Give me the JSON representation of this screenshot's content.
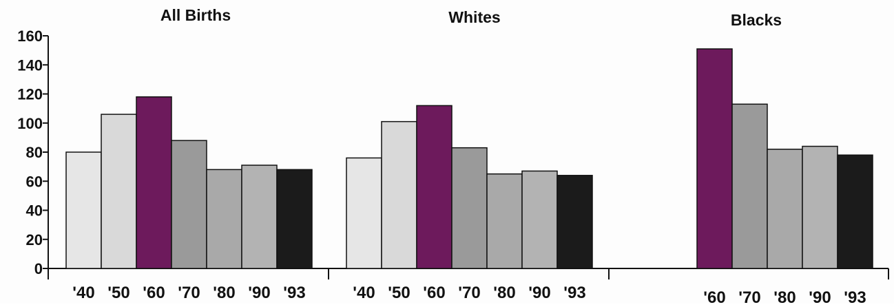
{
  "chart_data": [
    {
      "type": "bar",
      "title": "All Births",
      "categories": [
        "'40",
        "'50",
        "'60",
        "'70",
        "'80",
        "'90",
        "'93"
      ],
      "values": [
        80,
        106,
        118,
        88,
        68,
        71,
        68
      ],
      "ylim": [
        0,
        160
      ],
      "yticks": [
        0,
        20,
        40,
        60,
        80,
        100,
        120,
        140,
        160
      ],
      "ytick_labels": [
        "0",
        "20",
        "40",
        "60",
        "80",
        "100",
        "120",
        "140",
        "160"
      ],
      "bar_colors": [
        "#e6e6e6",
        "#d9d9d9",
        "#6d1a5c",
        "#9a9a9a",
        "#a9a9a9",
        "#b3b3b3",
        "#1b1b1b"
      ]
    },
    {
      "type": "bar",
      "title": "Whites",
      "categories": [
        "'40",
        "'50",
        "'60",
        "'70",
        "'80",
        "'90",
        "'93"
      ],
      "values": [
        76,
        101,
        112,
        83,
        65,
        67,
        64
      ],
      "ylim": [
        0,
        160
      ],
      "bar_colors": [
        "#e6e6e6",
        "#d9d9d9",
        "#6d1a5c",
        "#9a9a9a",
        "#a9a9a9",
        "#b3b3b3",
        "#1b1b1b"
      ]
    },
    {
      "type": "bar",
      "title": "Blacks",
      "categories": [
        "'60",
        "'70",
        "'80",
        "'90",
        "'93"
      ],
      "values": [
        151,
        113,
        82,
        84,
        78
      ],
      "ylim": [
        0,
        160
      ],
      "bar_colors": [
        "#6d1a5c",
        "#9a9a9a",
        "#a9a9a9",
        "#b3b3b3",
        "#1b1b1b"
      ]
    }
  ]
}
